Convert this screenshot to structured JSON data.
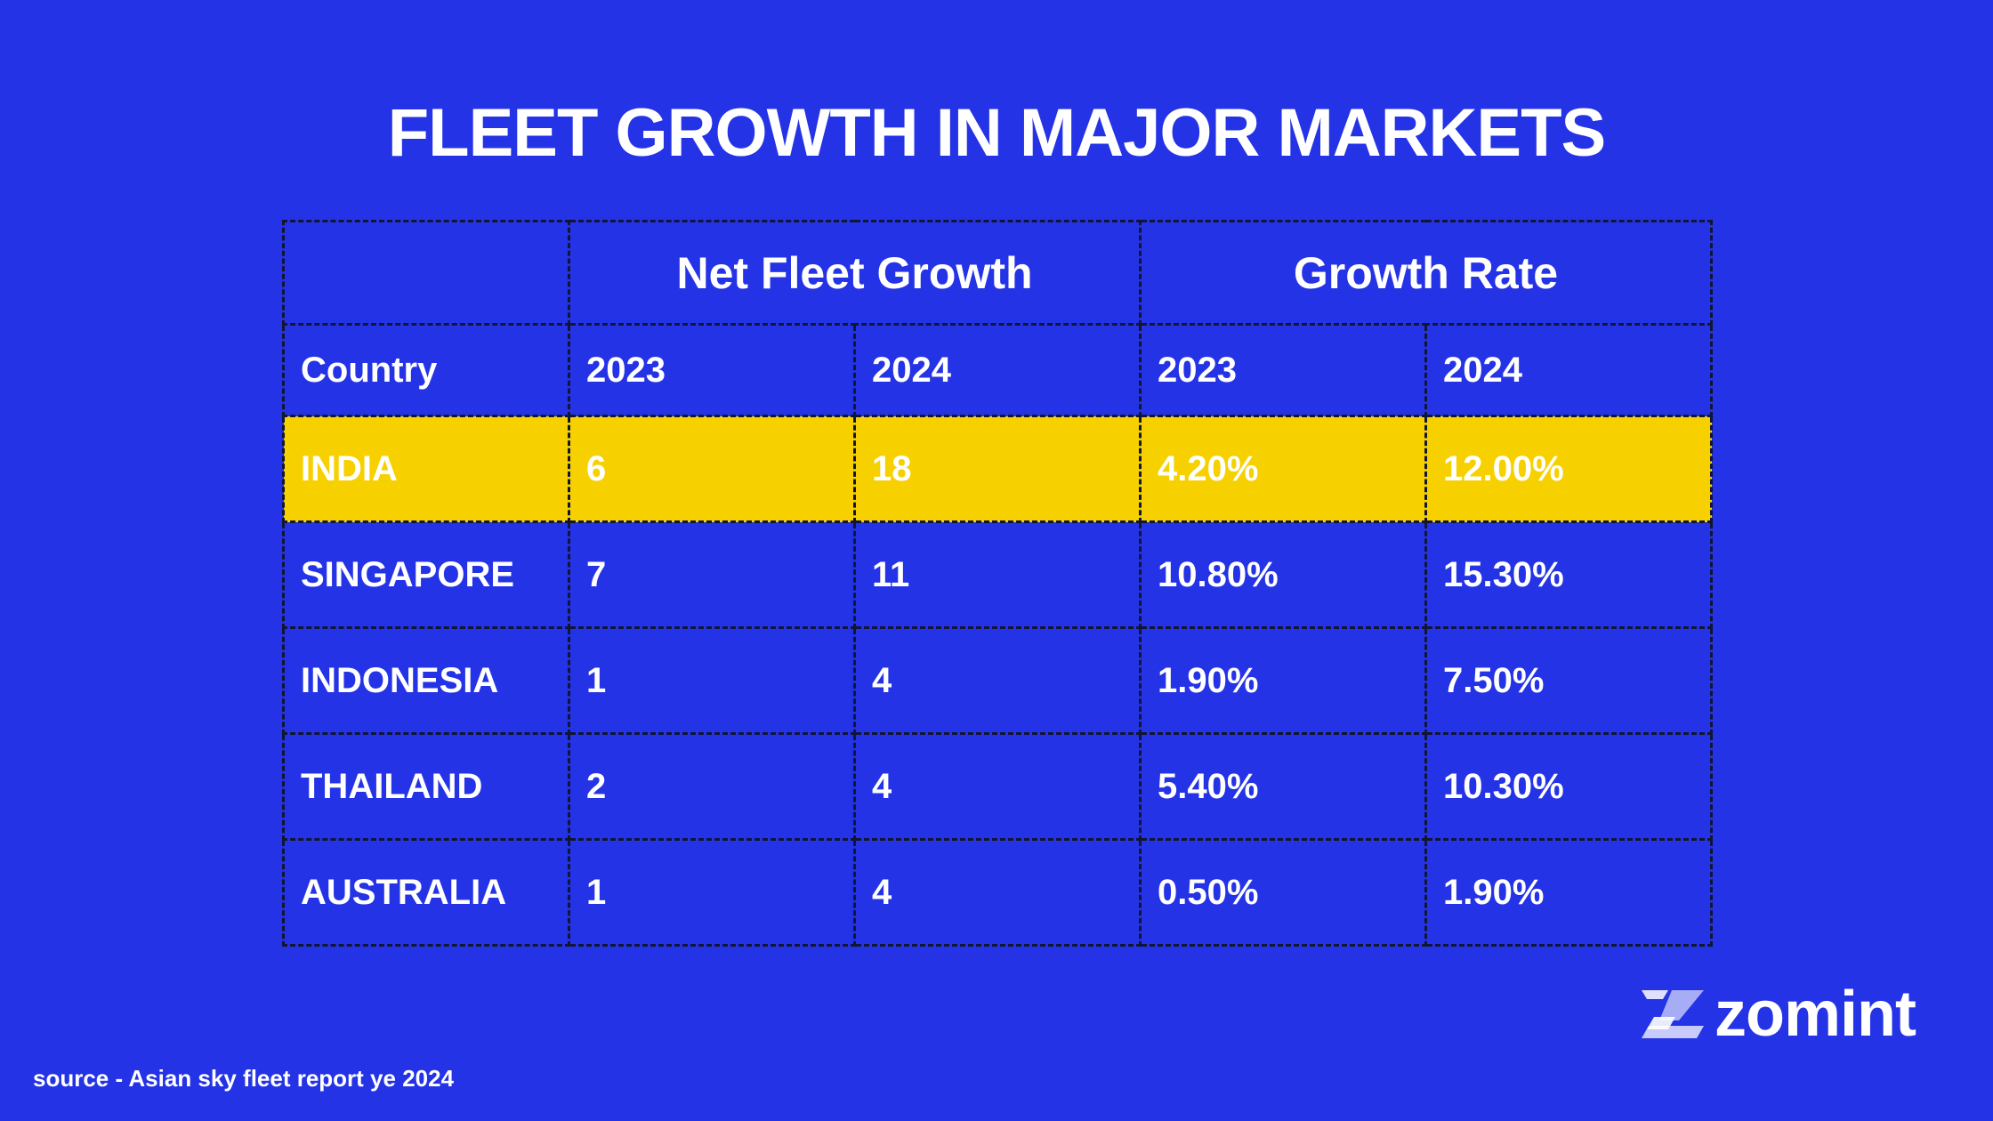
{
  "title": "FLEET GROWTH IN MAJOR MARKETS",
  "chart_data": {
    "type": "table",
    "title": "FLEET GROWTH IN MAJOR MARKETS",
    "group_headers": [
      "Net Fleet Growth",
      "Growth Rate"
    ],
    "columns": [
      "Country",
      "2023",
      "2024",
      "2023",
      "2024"
    ],
    "rows": [
      {
        "country": "INDIA",
        "net_2023": "6",
        "net_2024": "18",
        "rate_2023": "4.20%",
        "rate_2024": "12.00%",
        "highlighted": true
      },
      {
        "country": "SINGAPORE",
        "net_2023": "7",
        "net_2024": "11",
        "rate_2023": "10.80%",
        "rate_2024": "15.30%",
        "highlighted": false
      },
      {
        "country": "INDONESIA",
        "net_2023": "1",
        "net_2024": "4",
        "rate_2023": "1.90%",
        "rate_2024": "7.50%",
        "highlighted": false
      },
      {
        "country": "THAILAND",
        "net_2023": "2",
        "net_2024": "4",
        "rate_2023": "5.40%",
        "rate_2024": "10.30%",
        "highlighted": false
      },
      {
        "country": "AUSTRALIA",
        "net_2023": "1",
        "net_2024": "4",
        "rate_2023": "0.50%",
        "rate_2024": "1.90%",
        "highlighted": false
      }
    ]
  },
  "logo": {
    "text": "zomint",
    "icon": "zomint-logo-icon"
  },
  "source": "source - Asian sky fleet report ye 2024",
  "colors": {
    "background": "#2433E6",
    "highlight": "#F7D000",
    "text": "#FFFFFF",
    "border": "#111633"
  }
}
